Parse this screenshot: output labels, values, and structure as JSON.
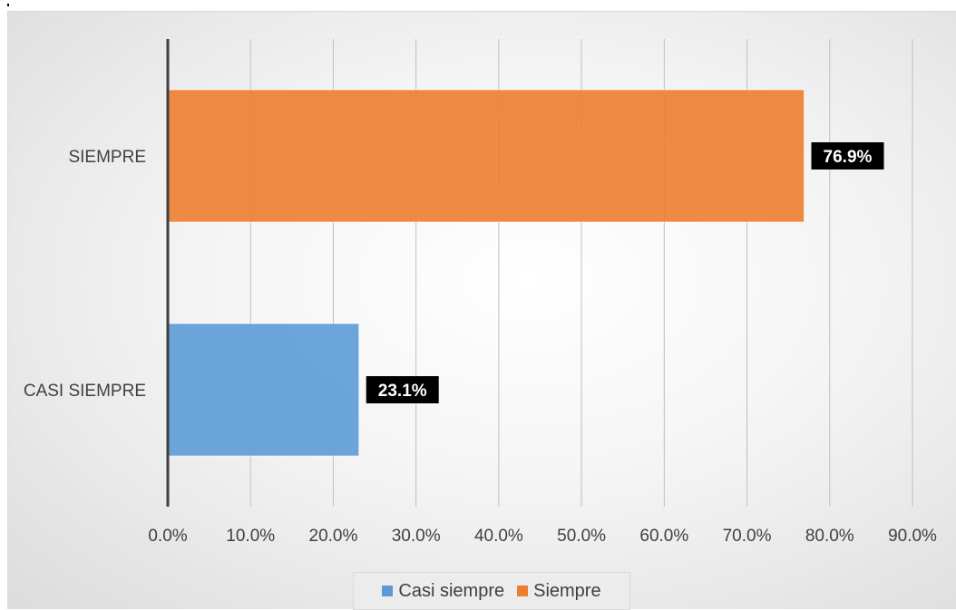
{
  "chart_data": {
    "type": "bar",
    "orientation": "horizontal",
    "categories": [
      "SIEMPRE",
      "CASI SIEMPRE"
    ],
    "series": [
      {
        "name": "Siempre",
        "category": "SIEMPRE",
        "value": 76.9,
        "color": "#ED7D31"
      },
      {
        "name": "Casi siempre",
        "category": "CASI SIEMPRE",
        "value": 23.1,
        "color": "#5B9BD5"
      }
    ],
    "data_labels": [
      "76.9%",
      "23.1%"
    ],
    "xlim": [
      0,
      90
    ],
    "x_ticks": [
      "0.0%",
      "10.0%",
      "20.0%",
      "30.0%",
      "40.0%",
      "50.0%",
      "60.0%",
      "70.0%",
      "80.0%",
      "90.0%"
    ],
    "grid": "vertical",
    "legend_position": "bottom"
  },
  "legend": {
    "items": [
      {
        "label": "Casi siempre",
        "color": "#5B9BD5"
      },
      {
        "label": "Siempre",
        "color": "#ED7D31"
      }
    ]
  }
}
